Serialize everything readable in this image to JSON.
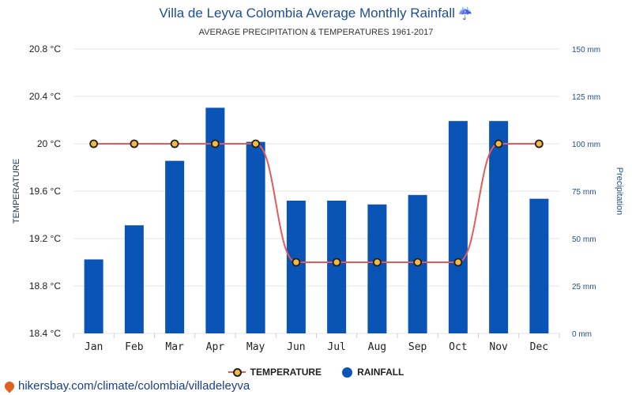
{
  "header": {
    "title": "Villa de Leyva Colombia Average Monthly Rainfall",
    "title_icon": "umbrella-rain-icon",
    "subtitle": "AVERAGE PRECIPITATION & TEMPERATURES 1961-2017"
  },
  "legend": {
    "temperature": "TEMPERATURE",
    "rainfall": "RAINFALL"
  },
  "footer": {
    "url": "hikersbay.com/climate/colombia/villadeleyva",
    "icon": "location-pin-icon"
  },
  "chart_data": {
    "type": "bar",
    "categories": [
      "Jan",
      "Feb",
      "Mar",
      "Apr",
      "May",
      "Jun",
      "Jul",
      "Aug",
      "Sep",
      "Oct",
      "Nov",
      "Dec"
    ],
    "ylabel": "TEMPERATURE",
    "y2label": "Precipitation",
    "ylim": [
      18.4,
      20.8
    ],
    "y2lim": [
      0,
      150
    ],
    "y_ticks": [
      "18.4 °C",
      "18.8 °C",
      "19.2 °C",
      "19.6 °C",
      "20 °C",
      "20.4 °C",
      "20.8 °C"
    ],
    "y2_ticks": [
      "0 mm",
      "25 mm",
      "50 mm",
      "75 mm",
      "100 mm",
      "125 mm",
      "150 mm"
    ],
    "grid": true,
    "legend_position": "bottom",
    "series": [
      {
        "name": "RAINFALL",
        "type": "bar",
        "axis": "right",
        "color": "#0a54b5",
        "values": [
          39,
          57,
          91,
          119,
          101,
          70,
          70,
          68,
          73,
          112,
          112,
          71
        ]
      },
      {
        "name": "TEMPERATURE",
        "type": "line",
        "axis": "left",
        "color": "#e85a5a",
        "marker_color": "#f5b942",
        "values": [
          20,
          20,
          20,
          20,
          20,
          19,
          19,
          19,
          19,
          19,
          20,
          20
        ]
      }
    ]
  }
}
